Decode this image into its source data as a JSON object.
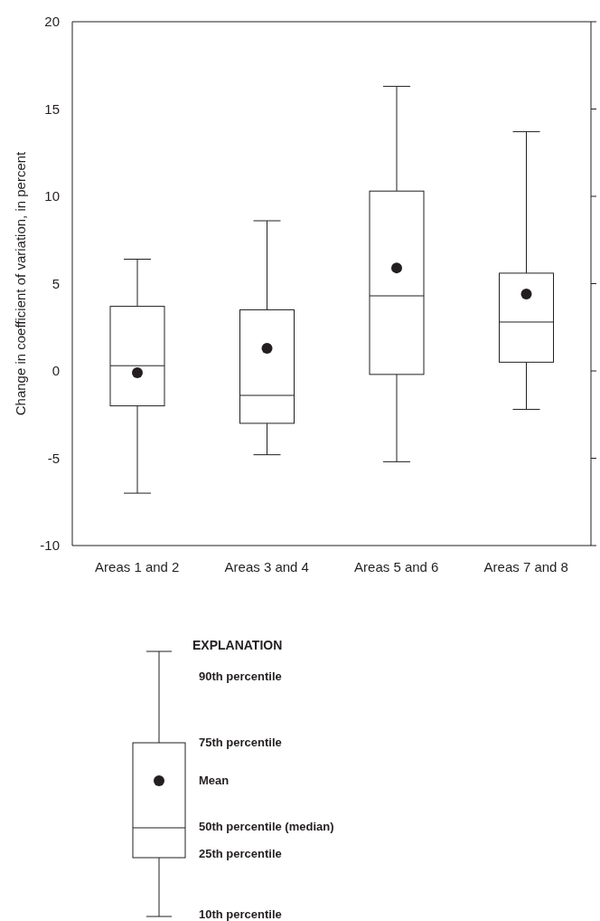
{
  "chart_data": {
    "type": "box",
    "ylabel": "Change in coefficient of variation, in percent",
    "categories": [
      "Areas 1 and 2",
      "Areas 3 and 4",
      "Areas 5 and 6",
      "Areas 7 and 8"
    ],
    "boxes": [
      {
        "low": -7.0,
        "q1": -2.0,
        "median": 0.3,
        "q3": 3.7,
        "high": 6.4,
        "mean": -0.1
      },
      {
        "low": -4.8,
        "q1": -3.0,
        "median": -1.4,
        "q3": 3.5,
        "high": 8.6,
        "mean": 1.3
      },
      {
        "low": -5.2,
        "q1": -0.2,
        "median": 4.3,
        "q3": 10.3,
        "high": 16.3,
        "mean": 5.9
      },
      {
        "low": -2.2,
        "q1": 0.5,
        "median": 2.8,
        "q3": 5.6,
        "high": 13.7,
        "mean": 4.4
      }
    ],
    "ylim": [
      -10,
      20
    ],
    "yticks": [
      -10,
      -5,
      0,
      5,
      10,
      15,
      20
    ],
    "annotations": [
      "EXPLANATION",
      "90th percentile",
      "75th percentile",
      "Mean",
      "50th percentile (median)",
      "25th percentile",
      "10th percentile"
    ]
  }
}
